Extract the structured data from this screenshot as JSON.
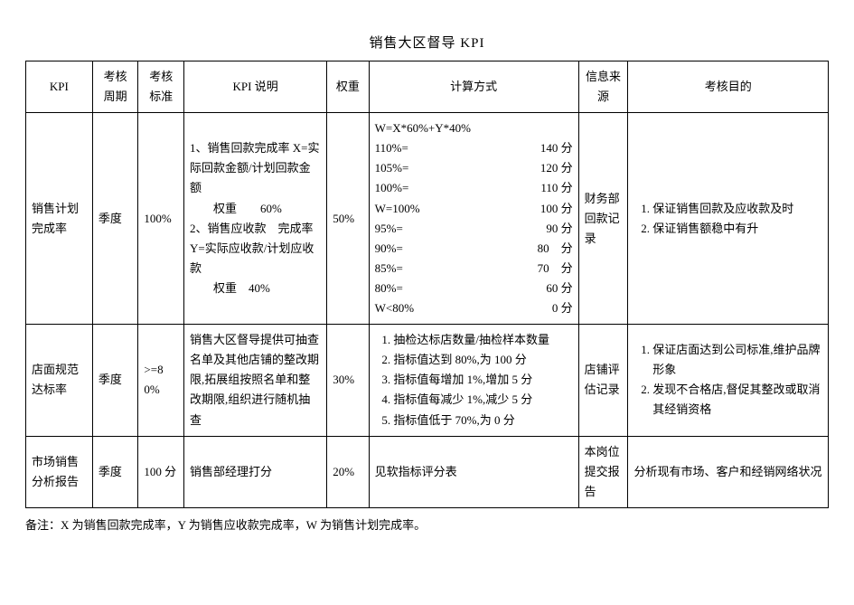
{
  "title": "销售大区督导 KPI",
  "columns": {
    "c0": "KPI",
    "c1": "考核周期",
    "c2": "考核标准",
    "c3": "KPI 说明",
    "c4": "权重",
    "c5": "计算方式",
    "c6": "信息来源",
    "c7": "考核目的"
  },
  "col_widths": [
    "70",
    "48",
    "48",
    "150",
    "44",
    "220",
    "52",
    "210"
  ],
  "rows": [
    {
      "kpi": "销售计划完成率",
      "period": "季度",
      "standard": "100%",
      "desc": "1、销售回款完成率 X=实际回款金额/计划回款金额\n　　权重　　60%\n2、销售应收款　完成率 Y=实际应收款/计划应收款\n　　权重　40%",
      "weight": "50%",
      "calc_header": "W=X*60%+Y*40%",
      "calc_lines": [
        {
          "l": "110%=",
          "r": "140 分"
        },
        {
          "l": "105%=",
          "r": "120 分"
        },
        {
          "l": "100%=",
          "r": "110 分"
        },
        {
          "l": "W=100%",
          "r": "100 分"
        },
        {
          "l": "95%=",
          "r": "90 分"
        },
        {
          "l": "90%=",
          "r": "80　分"
        },
        {
          "l": "85%=",
          "r": "70　分"
        },
        {
          "l": "80%=",
          "r": "60 分"
        },
        {
          "l": "W<80%",
          "r": "0 分"
        }
      ],
      "source": "财务部回款记录",
      "goals": [
        "保证销售回款及应收款及时",
        "保证销售额稳中有升"
      ]
    },
    {
      "kpi": "店面规范达标率",
      "period": "季度",
      "standard": ">=80%",
      "desc": "销售大区督导提供可抽查名单及其他店铺的整改期限,拓展组按照名单和整改期限,组织进行随机抽查",
      "weight": "30%",
      "calc_list": [
        "抽检达标店数量/抽检样本数量",
        "指标值达到 80%,为 100 分",
        "指标值每增加 1%,增加 5 分",
        "指标值每减少 1%,减少 5 分",
        "指标值低于 70%,为 0 分"
      ],
      "source": "店铺评估记录",
      "goals": [
        "保证店面达到公司标准,维护品牌形象",
        "发现不合格店,督促其整改或取消其经销资格"
      ]
    },
    {
      "kpi": "市场销售分析报告",
      "period": "季度",
      "standard": "100 分",
      "desc": "销售部经理打分",
      "weight": "20%",
      "calc_plain": "见软指标评分表",
      "source": "本岗位提交报告",
      "goal_plain": "分析现有市场、客户和经销网络状况"
    }
  ],
  "note": "备注：X 为销售回款完成率，Y 为销售应收款完成率，W 为销售计划完成率。"
}
